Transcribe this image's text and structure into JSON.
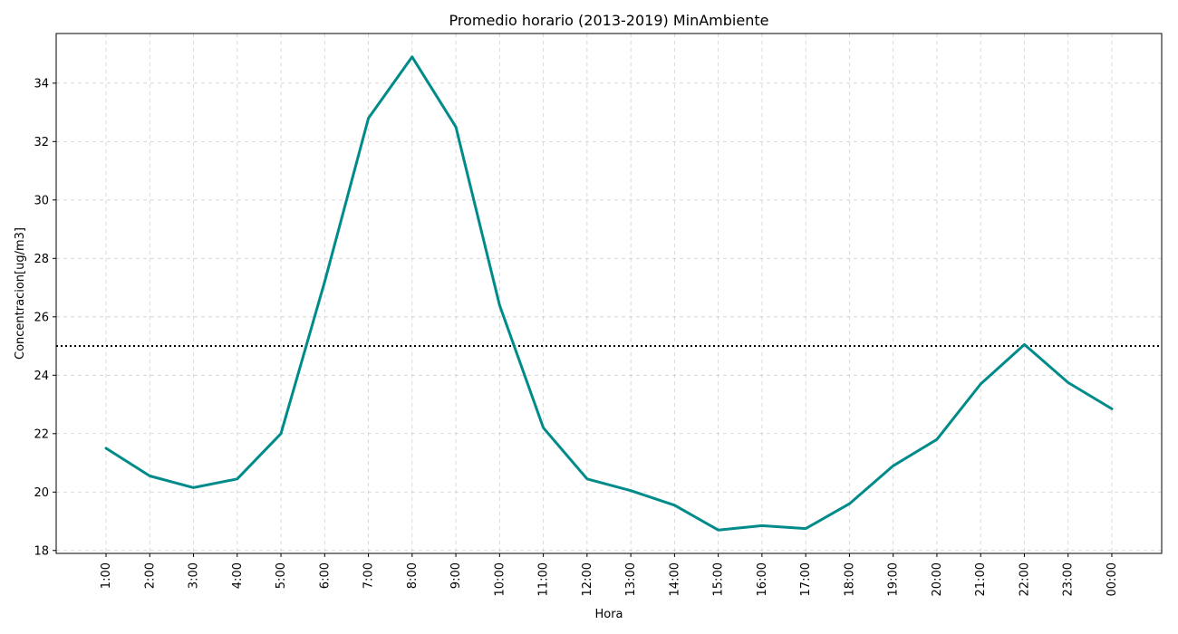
{
  "chart_data": {
    "type": "line",
    "title": "Promedio horario (2013-2019) MinAmbiente",
    "xlabel": "Hora",
    "ylabel": "Concentracion[ug/m3]",
    "categories": [
      "1:00",
      "2:00",
      "3:00",
      "4:00",
      "5:00",
      "6:00",
      "7:00",
      "8:00",
      "9:00",
      "10:00",
      "11:00",
      "12:00",
      "13:00",
      "14:00",
      "15:00",
      "16:00",
      "17:00",
      "18:00",
      "19:00",
      "20:00",
      "21:00",
      "22:00",
      "23:00",
      "00:00"
    ],
    "series": [
      {
        "values": [
          21.5,
          20.55,
          20.15,
          20.45,
          22.0,
          27.2,
          32.8,
          34.9,
          32.5,
          26.4,
          22.2,
          20.45,
          20.05,
          19.55,
          18.7,
          18.85,
          18.75,
          19.6,
          20.9,
          21.8,
          23.7,
          25.05,
          23.75,
          22.85
        ],
        "color": "#008b8b"
      }
    ],
    "reference_line": {
      "value": 25,
      "style": "dotted",
      "color": "#000000"
    },
    "yticks": [
      18,
      20,
      22,
      24,
      26,
      28,
      30,
      32,
      34
    ],
    "ylim": [
      17.9,
      35.7
    ],
    "grid": true,
    "colors": {
      "line": "#008b8b",
      "grid": "#b0b0b0",
      "axes": "#000000"
    }
  }
}
